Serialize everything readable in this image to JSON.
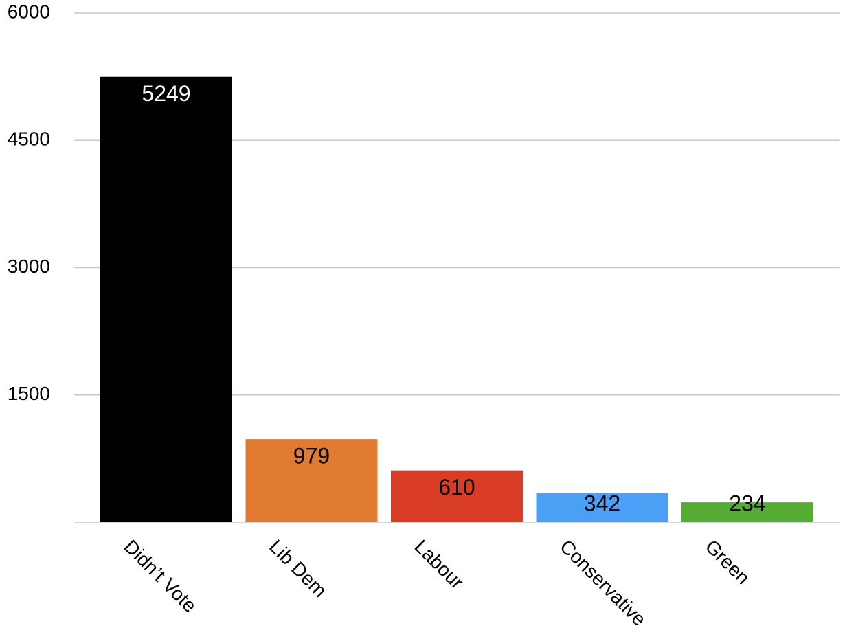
{
  "chart_data": {
    "type": "bar",
    "categories": [
      "Didn’t Vote",
      "Lib Dem",
      "Labour",
      "Conservative",
      "Green"
    ],
    "values": [
      5249,
      979,
      610,
      342,
      234
    ],
    "colors": [
      "#000000",
      "#e07b31",
      "#d93d26",
      "#4aa0f4",
      "#55ad33"
    ],
    "value_label_colors": [
      "#ffffff",
      "#000000",
      "#000000",
      "#000000",
      "#000000"
    ],
    "ylim": [
      0,
      6000
    ],
    "yticks": [
      1500,
      3000,
      4500,
      6000
    ],
    "grid": true
  }
}
